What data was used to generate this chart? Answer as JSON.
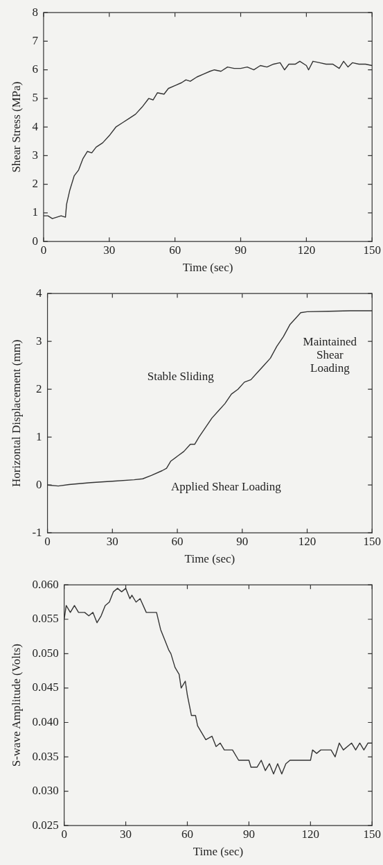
{
  "chart_data": [
    {
      "type": "line",
      "ylabel": "Shear Stress (MPa)",
      "xlabel": "Time (sec)",
      "xlim": [
        0,
        150
      ],
      "xticks": [
        0,
        30,
        60,
        90,
        120,
        150
      ],
      "ylim": [
        0,
        8
      ],
      "yticks": [
        0,
        1,
        2,
        3,
        4,
        5,
        6,
        7,
        8
      ],
      "grid": false,
      "legend": false,
      "marker": "none",
      "line_style": "solid",
      "series": [
        {
          "color": "#333333",
          "x": [
            0,
            2,
            4,
            6,
            8,
            10,
            10.5,
            12,
            14,
            16,
            18,
            20,
            22,
            24,
            27,
            30,
            33,
            36,
            39,
            42,
            45,
            48,
            50,
            52,
            55,
            57,
            60,
            63,
            65,
            67,
            70,
            73,
            76,
            78,
            81,
            84,
            87,
            90,
            93,
            96,
            99,
            102,
            105,
            108,
            110,
            112,
            115,
            117,
            120,
            121,
            123,
            126,
            129,
            132,
            135,
            137,
            139,
            141,
            144,
            147,
            150
          ],
          "values": [
            0.9,
            0.9,
            0.8,
            0.85,
            0.9,
            0.85,
            1.3,
            1.8,
            2.3,
            2.5,
            2.9,
            3.15,
            3.1,
            3.3,
            3.45,
            3.7,
            4.0,
            4.15,
            4.3,
            4.45,
            4.7,
            5.0,
            4.95,
            5.2,
            5.15,
            5.35,
            5.45,
            5.55,
            5.65,
            5.6,
            5.75,
            5.85,
            5.95,
            6.0,
            5.95,
            6.1,
            6.05,
            6.05,
            6.1,
            6.0,
            6.15,
            6.1,
            6.2,
            6.25,
            6.0,
            6.2,
            6.2,
            6.3,
            6.15,
            6.0,
            6.3,
            6.25,
            6.2,
            6.2,
            6.05,
            6.3,
            6.1,
            6.25,
            6.2,
            6.2,
            6.15
          ]
        }
      ]
    },
    {
      "type": "line",
      "ylabel": "Horizontal Displacement (mm)",
      "xlabel": "Time (sec)",
      "xlim": [
        0,
        150
      ],
      "xticks": [
        0,
        30,
        60,
        90,
        120,
        150
      ],
      "ylim": [
        -1,
        4
      ],
      "yticks": [
        -1,
        0,
        1,
        2,
        3,
        4
      ],
      "grid": false,
      "legend": false,
      "marker": "none",
      "line_style": "solid",
      "annotations": [
        "Stable Sliding",
        "Applied Shear Loading",
        "Maintained\nShear\nLoading"
      ],
      "series": [
        {
          "color": "#333333",
          "x": [
            0,
            5,
            10,
            20,
            30,
            40,
            44,
            48,
            53,
            55,
            57,
            60,
            63,
            66,
            68,
            70,
            73,
            76,
            79,
            82,
            85,
            88,
            91,
            94,
            97,
            100,
            103,
            106,
            109,
            112,
            115,
            117,
            120,
            130,
            140,
            150
          ],
          "values": [
            0,
            -0.02,
            0.01,
            0.05,
            0.08,
            0.11,
            0.13,
            0.2,
            0.3,
            0.35,
            0.5,
            0.6,
            0.7,
            0.85,
            0.85,
            1.0,
            1.2,
            1.4,
            1.55,
            1.7,
            1.9,
            2.0,
            2.15,
            2.2,
            2.35,
            2.5,
            2.65,
            2.9,
            3.1,
            3.35,
            3.5,
            3.6,
            3.62,
            3.63,
            3.64,
            3.64
          ]
        }
      ]
    },
    {
      "type": "line",
      "ylabel": "S-wave Amplitude (Volts)",
      "xlabel": "Time (sec)",
      "xlim": [
        0,
        150
      ],
      "xticks": [
        0,
        30,
        60,
        90,
        120,
        150
      ],
      "ylim": [
        0.025,
        0.06
      ],
      "yticks": [
        {
          "value": 0.025,
          "label": "0.025"
        },
        {
          "value": 0.03,
          "label": "0.030"
        },
        {
          "value": 0.035,
          "label": "0.035"
        },
        {
          "value": 0.04,
          "label": "0.040"
        },
        {
          "value": 0.045,
          "label": "0.045"
        },
        {
          "value": 0.05,
          "label": "0.050"
        },
        {
          "value": 0.055,
          "label": "0.055"
        },
        {
          "value": 0.06,
          "label": "0.060"
        }
      ],
      "grid": false,
      "legend": false,
      "marker": "none",
      "line_style": "solid",
      "series": [
        {
          "color": "#333333",
          "x": [
            0,
            1,
            3,
            5,
            7,
            10,
            12,
            14,
            16,
            18,
            20,
            22,
            24,
            26,
            28,
            30,
            32,
            33,
            35,
            37,
            40,
            42,
            45,
            47,
            49,
            51,
            52,
            54,
            56,
            57,
            59,
            60,
            62,
            64,
            65,
            67,
            69,
            72,
            74,
            76,
            78,
            82,
            85,
            90,
            91,
            94,
            96,
            98,
            100,
            102,
            104,
            106,
            108,
            110,
            112,
            116,
            120,
            121,
            123,
            125,
            128,
            130,
            132,
            134,
            136,
            140,
            142,
            144,
            146,
            148,
            150
          ],
          "values": [
            0.055,
            0.057,
            0.056,
            0.057,
            0.056,
            0.056,
            0.0555,
            0.056,
            0.0545,
            0.0555,
            0.057,
            0.0575,
            0.059,
            0.0595,
            0.059,
            0.0595,
            0.058,
            0.0585,
            0.0575,
            0.058,
            0.056,
            0.056,
            0.056,
            0.0535,
            0.052,
            0.0505,
            0.05,
            0.048,
            0.047,
            0.045,
            0.046,
            0.044,
            0.041,
            0.041,
            0.0395,
            0.0385,
            0.0375,
            0.038,
            0.0365,
            0.037,
            0.036,
            0.036,
            0.0345,
            0.0345,
            0.0335,
            0.0335,
            0.0345,
            0.033,
            0.034,
            0.0325,
            0.034,
            0.0325,
            0.034,
            0.0345,
            0.0345,
            0.0345,
            0.0345,
            0.036,
            0.0355,
            0.036,
            0.036,
            0.036,
            0.035,
            0.037,
            0.036,
            0.037,
            0.036,
            0.037,
            0.036,
            0.037,
            0.037
          ]
        }
      ]
    }
  ]
}
